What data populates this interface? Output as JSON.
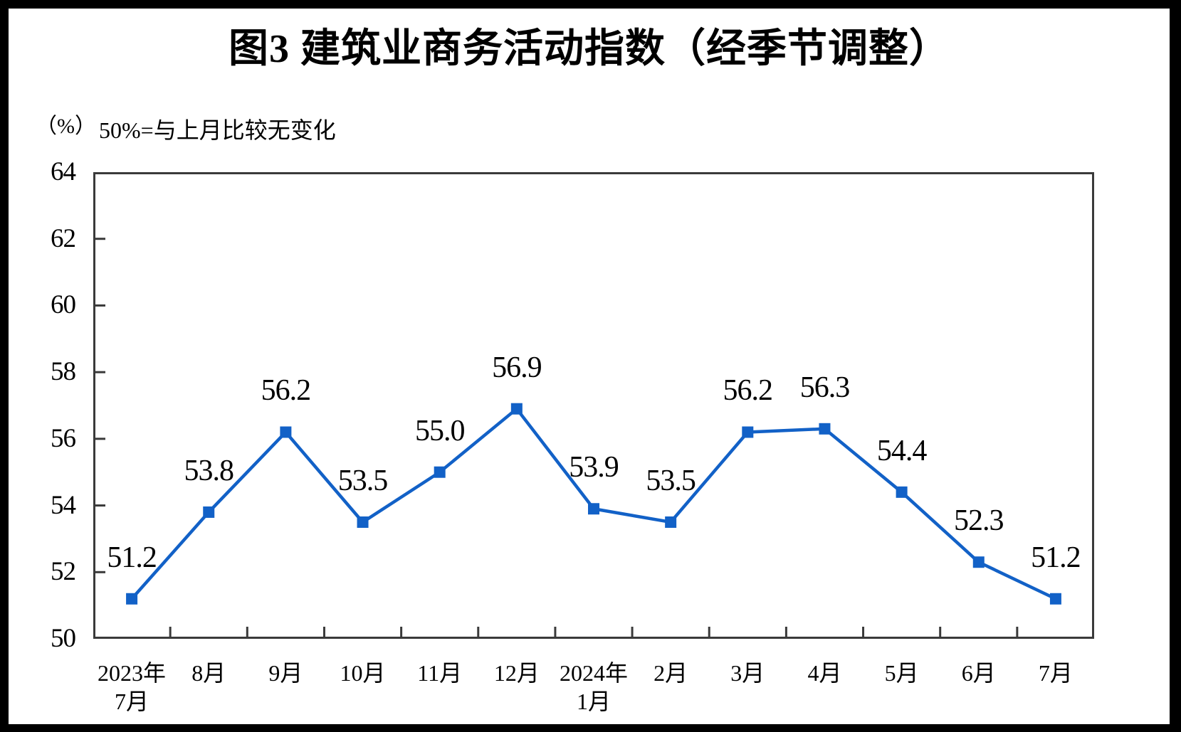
{
  "chart_data": {
    "type": "line",
    "title": "图3  建筑业商务活动指数（经季节调整）",
    "unit_label": "（%）",
    "subtitle": "50%=与上月比较无变化",
    "categories": [
      "2023年\n7月",
      "8月",
      "9月",
      "10月",
      "11月",
      "12月",
      "2024年\n1月",
      "2月",
      "3月",
      "4月",
      "5月",
      "6月",
      "7月"
    ],
    "series": [
      {
        "name": "建筑业商务活动指数",
        "values": [
          51.2,
          53.8,
          56.2,
          53.5,
          55.0,
          56.9,
          53.9,
          53.5,
          56.2,
          56.3,
          54.4,
          52.3,
          51.2
        ],
        "data_labels": [
          "51.2",
          "53.8",
          "56.2",
          "53.5",
          "55.0",
          "56.9",
          "53.9",
          "53.5",
          "56.2",
          "56.3",
          "54.4",
          "52.3",
          "51.2"
        ]
      }
    ],
    "ylabel": "（%）",
    "ylim": [
      50,
      64
    ],
    "yticks": [
      50,
      52,
      54,
      56,
      58,
      60,
      62,
      64
    ],
    "grid": false,
    "legend_position": "none",
    "marker_shape": "square",
    "colors": {
      "series_blue": "#1261C7",
      "axis": "#3a3a3a",
      "text": "#000000",
      "background": "#ffffff",
      "outer_frame": "#000000"
    }
  }
}
